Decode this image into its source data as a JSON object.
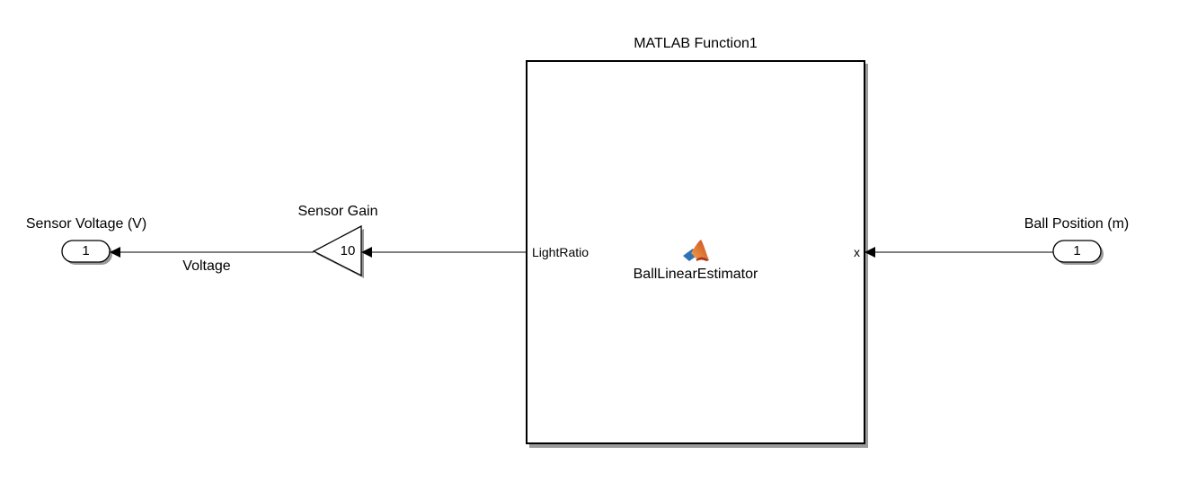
{
  "outport": {
    "name": "Sensor Voltage (V)",
    "number": "1"
  },
  "gain": {
    "name": "Sensor Gain",
    "value": "10"
  },
  "signal": {
    "label": "Voltage"
  },
  "function_block": {
    "title": "MATLAB Function1",
    "input_port": "LightRatio",
    "output_port": "x",
    "function_name": "BallLinearEstimator",
    "icon": "matlab-logo-icon"
  },
  "inport": {
    "name": "Ball Position (m)",
    "number": "1"
  },
  "colors": {
    "line": "#000000",
    "block_shadow": "#9a9a9a",
    "logo_orange": "#e06a2a",
    "logo_blue": "#2f73b7"
  }
}
